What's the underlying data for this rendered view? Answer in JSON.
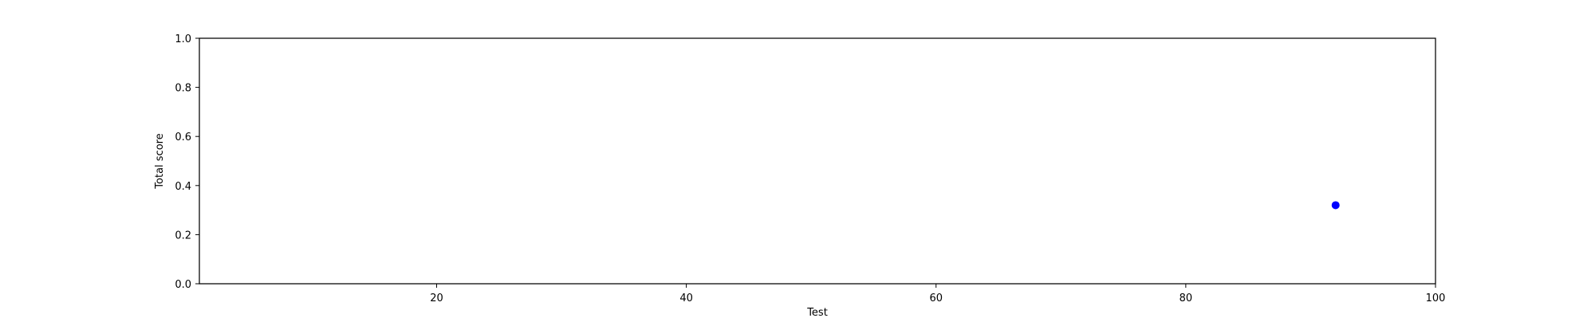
{
  "chart_data": {
    "type": "scatter",
    "title": "",
    "xlabel": "Test",
    "ylabel": "Total score",
    "xlim": [
      1,
      100
    ],
    "ylim": [
      0.0,
      1.0
    ],
    "x_ticks": [
      20,
      40,
      60,
      80,
      100
    ],
    "x_tick_labels": [
      "20",
      "40",
      "60",
      "80",
      "100"
    ],
    "y_ticks": [
      0.0,
      0.2,
      0.4,
      0.6,
      0.8,
      1.0
    ],
    "y_tick_labels": [
      "0.0",
      "0.2",
      "0.4",
      "0.6",
      "0.8",
      "1.0"
    ],
    "grid": false,
    "series": [
      {
        "color": "#0000ff",
        "points": [
          {
            "x": 92,
            "y": 0.32
          }
        ]
      }
    ]
  }
}
